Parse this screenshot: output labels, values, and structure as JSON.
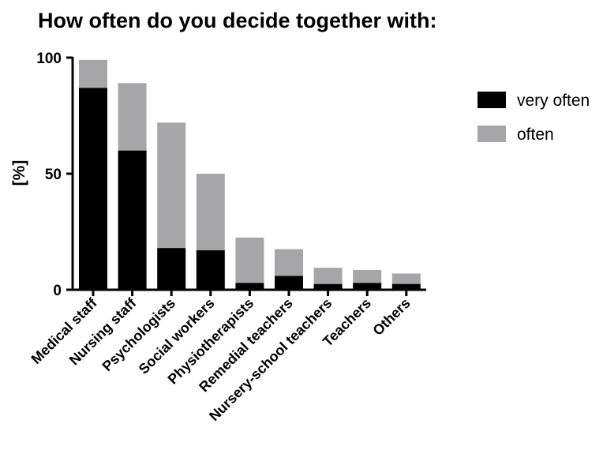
{
  "chart_data": {
    "type": "bar",
    "stacked": true,
    "title": "How often do you decide together with:",
    "xlabel": "",
    "ylabel": "[%]",
    "ylim": [
      0,
      100
    ],
    "yticks": [
      0,
      50,
      100
    ],
    "grid": false,
    "legend_position": "right",
    "categories": [
      "Medical staff",
      "Nursing staff",
      "Psychologists",
      "Social workers",
      "Physiotherapists",
      "Remedial teachers",
      "Nursery-school teachers",
      "Teachers",
      "Others"
    ],
    "series": [
      {
        "name": "very often",
        "color": "#000000",
        "values": [
          87,
          60,
          18,
          17,
          3,
          6,
          2.5,
          3,
          2.5
        ]
      },
      {
        "name": "often",
        "color": "#a6a6a8",
        "values": [
          12,
          29,
          54,
          33,
          19.5,
          11.5,
          7,
          5.5,
          4.5
        ]
      }
    ]
  }
}
